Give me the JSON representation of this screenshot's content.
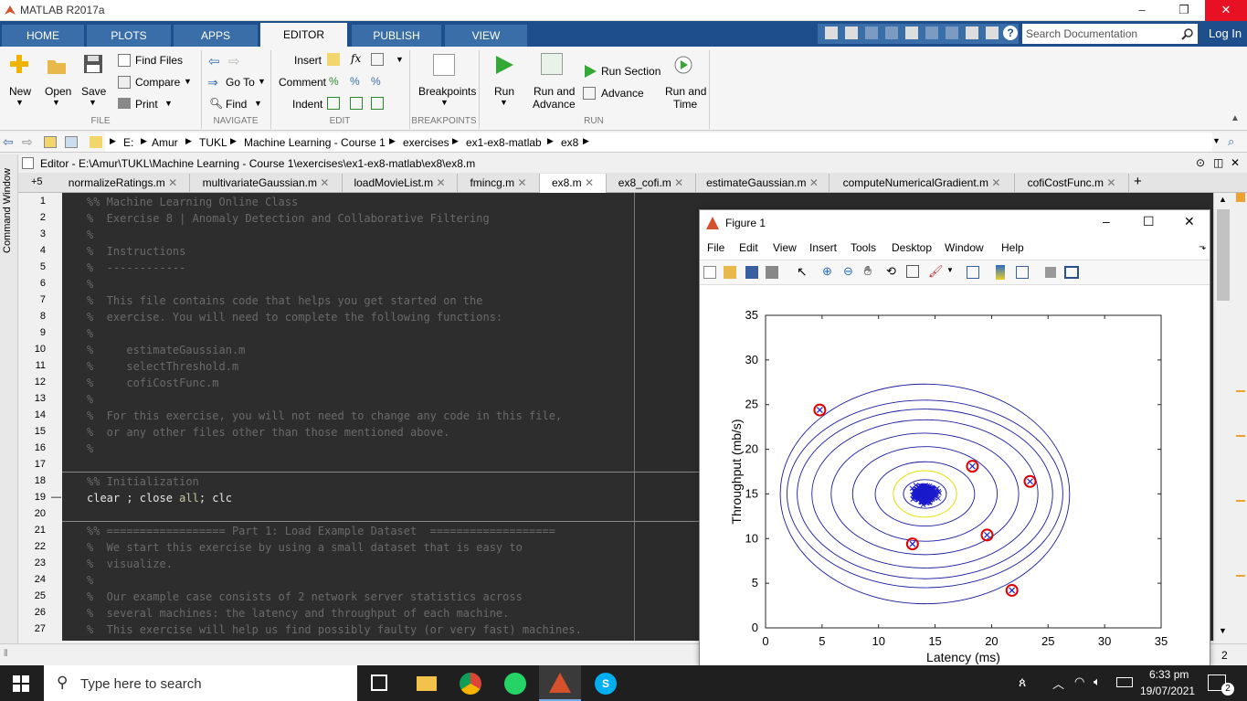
{
  "window": {
    "title": "MATLAB R2017a"
  },
  "tabs": [
    "HOME",
    "PLOTS",
    "APPS",
    "EDITOR",
    "PUBLISH",
    "VIEW"
  ],
  "search": {
    "placeholder": "Search Documentation"
  },
  "login": "Log In",
  "ribbon": {
    "new": "New",
    "open": "Open",
    "save": "Save",
    "find_files": "Find Files",
    "compare": "Compare",
    "print": "Print",
    "go_to": "Go To",
    "find": "Find",
    "insert": "Insert",
    "fx": "fx",
    "comment": "Comment",
    "indent": "Indent",
    "breakpoints": "Breakpoints",
    "run": "Run",
    "run_and": "Run and",
    "advance": "Advance",
    "run_section": "Run Section",
    "advance2": "Advance",
    "run_and2": "Run and",
    "time": "Time",
    "groups": {
      "file": "FILE",
      "navigate": "NAVIGATE",
      "edit": "EDIT",
      "breakpoints": "BREAKPOINTS",
      "run": "RUN"
    }
  },
  "path": [
    "E:",
    "Amur",
    "TUKL",
    "Machine Learning - Course 1",
    "exercises",
    "ex1-ex8-matlab",
    "ex8"
  ],
  "editor": {
    "title": "Editor - E:\\Amur\\TUKL\\Machine Learning - Course 1\\exercises\\ex1-ex8-matlab\\ex8\\ex8.m",
    "tab_count": "+5"
  },
  "cmd_window": "Command Window",
  "file_tabs": [
    "normalizeRatings.m",
    "multivariateGaussian.m",
    "loadMovieList.m",
    "fmincg.m",
    "ex8.m",
    "ex8_cofi.m",
    "estimateGaussian.m",
    "computeNumericalGradient.m",
    "cofiCostFunc.m"
  ],
  "code": [
    "%% Machine Learning Online Class",
    "%  Exercise 8 | Anomaly Detection and Collaborative Filtering",
    "%",
    "%  Instructions",
    "%  ------------",
    "%",
    "%  This file contains code that helps you get started on the",
    "%  exercise. You will need to complete the following functions:",
    "%",
    "%     estimateGaussian.m",
    "%     selectThreshold.m",
    "%     cofiCostFunc.m",
    "%",
    "%  For this exercise, you will not need to change any code in this file,",
    "%  or any other files other than those mentioned above.",
    "%",
    "",
    "%% Initialization",
    "clear ; close all; clc",
    "",
    "%% ================== Part 1: Load Example Dataset  ===================",
    "%  We start this exercise by using a small dataset that is easy to",
    "%  visualize.",
    "%",
    "%  Our example case consists of 2 network server statistics across",
    "%  several machines: the latency and throughput of each machine.",
    "%  This exercise will help us find possibly faulty (or very fast) machines."
  ],
  "line_numbers": [
    "1",
    "2",
    "3",
    "4",
    "5",
    "6",
    "7",
    "8",
    "9",
    "10",
    "11",
    "12",
    "13",
    "14",
    "15",
    "16",
    "17",
    "18",
    "19",
    "20",
    "21",
    "22",
    "23",
    "24",
    "25",
    "26",
    "27"
  ],
  "status_right": "2",
  "figure": {
    "title": "Figure 1",
    "menu": [
      "File",
      "Edit",
      "View",
      "Insert",
      "Tools",
      "Desktop",
      "Window",
      "Help"
    ]
  },
  "chart_data": {
    "type": "scatter",
    "xlabel": "Latency (ms)",
    "ylabel": "Throughput (mb/s)",
    "xlim": [
      0,
      35
    ],
    "ylim": [
      0,
      35
    ],
    "xticks": [
      0,
      5,
      10,
      15,
      20,
      25,
      30,
      35
    ],
    "yticks": [
      0,
      5,
      10,
      15,
      20,
      25,
      30,
      35
    ],
    "center": [
      14.1,
      15.0
    ],
    "contour_radii": [
      [
        1.9,
        1.6
      ],
      [
        4.4,
        3.6
      ],
      [
        6.4,
        5.3
      ],
      [
        8.3,
        6.8
      ],
      [
        10,
        8.3
      ],
      [
        11.3,
        9.5
      ],
      [
        12.2,
        10.5
      ],
      [
        12.8,
        12.3
      ]
    ],
    "yellow_contour": [
      2.8,
      2.6
    ],
    "anomalies": [
      [
        4.8,
        24.4
      ],
      [
        13.0,
        9.4
      ],
      [
        18.3,
        18.1
      ],
      [
        19.6,
        10.4
      ],
      [
        21.8,
        4.2
      ],
      [
        23.4,
        16.4
      ]
    ],
    "colors": {
      "contour": "#1a1aa0",
      "points": "#1a1acc",
      "anomaly": "#dd0000",
      "yellow": "#e8e000"
    }
  },
  "taskbar": {
    "search": "Type here to search",
    "time": "6:33 pm",
    "date": "19/07/2021",
    "notif": "2"
  }
}
